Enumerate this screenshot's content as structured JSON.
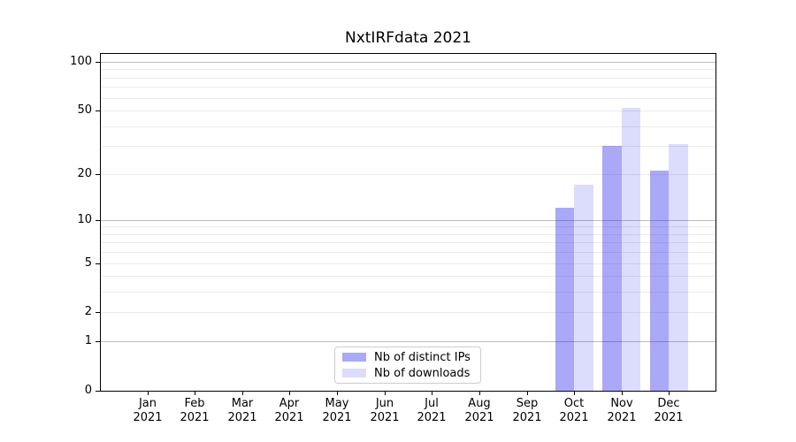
{
  "chart_data": {
    "type": "bar",
    "title": "NxtIRFdata 2021",
    "categories": [
      "Jan 2021",
      "Feb 2021",
      "Mar 2021",
      "Apr 2021",
      "May 2021",
      "Jun 2021",
      "Jul 2021",
      "Aug 2021",
      "Sep 2021",
      "Oct 2021",
      "Nov 2021",
      "Dec 2021"
    ],
    "series": [
      {
        "name": "Nb of distinct IPs",
        "color": "rgba(10,10,235,0.35)",
        "values": [
          0,
          0,
          0,
          0,
          0,
          0,
          0,
          0,
          0,
          12,
          30,
          21
        ]
      },
      {
        "name": "Nb of downloads",
        "color": "rgba(10,10,235,0.14)",
        "values": [
          0,
          0,
          0,
          0,
          0,
          0,
          0,
          0,
          0,
          17,
          52,
          31
        ]
      }
    ],
    "xlabel": "",
    "ylabel": "",
    "yscale": "log1p",
    "ylim": [
      0,
      113
    ],
    "y_ticks": [
      0,
      1,
      2,
      5,
      10,
      20,
      50,
      100
    ],
    "grid": {
      "major": [
        1,
        10,
        100
      ],
      "minor": [
        2,
        3,
        4,
        5,
        6,
        7,
        8,
        9,
        20,
        30,
        40,
        50,
        60,
        70,
        80,
        90
      ],
      "major_color": "#bdbdbd",
      "minor_color": "#ebebeb"
    },
    "legend_position": "lower center",
    "legend_border_color": "#cccccc",
    "axis_color": "#000000",
    "text_color": "#000000"
  }
}
